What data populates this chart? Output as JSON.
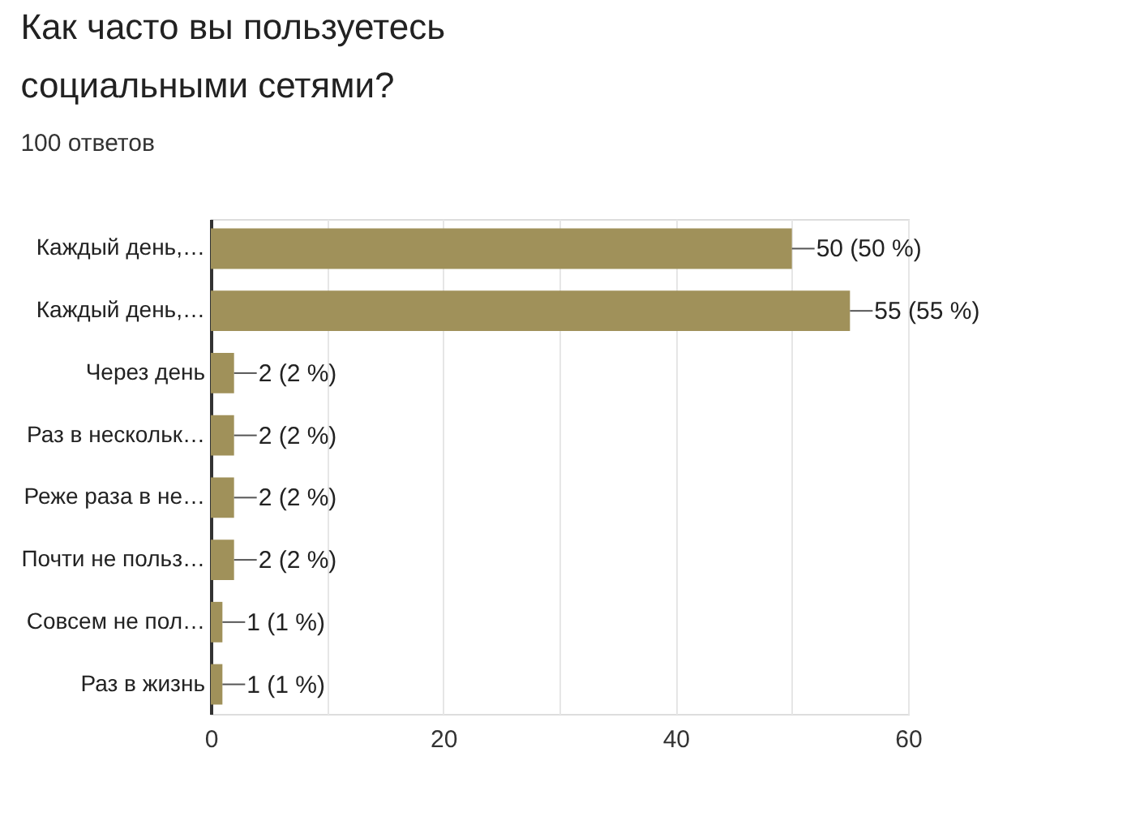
{
  "chart_data": {
    "type": "bar",
    "orientation": "horizontal",
    "title": "Как часто вы пользуетесь социальными сетями?",
    "subtitle": "100 ответов",
    "categories": [
      "Каждый день,…",
      "Каждый день,…",
      "Через день",
      "Раз в нескольк…",
      "Реже раза в не…",
      "Почти не польз…",
      "Совсем не пол…",
      "Раз в жизнь"
    ],
    "values": [
      50,
      55,
      2,
      2,
      2,
      2,
      1,
      1
    ],
    "value_labels": [
      "50 (50 %)",
      "55 (55 %)",
      "2 (2 %)",
      "2 (2 %)",
      "2 (2 %)",
      "2 (2 %)",
      "1 (1 %)",
      "1 (1 %)"
    ],
    "color": "#a0915a",
    "xlim": [
      0,
      60
    ],
    "xticks": [
      0,
      {
        "value": 10,
        "label": null
      },
      20,
      {
        "value": 30,
        "label": null
      },
      40,
      {
        "value": 50,
        "label": null
      },
      60
    ],
    "grid": "x"
  }
}
